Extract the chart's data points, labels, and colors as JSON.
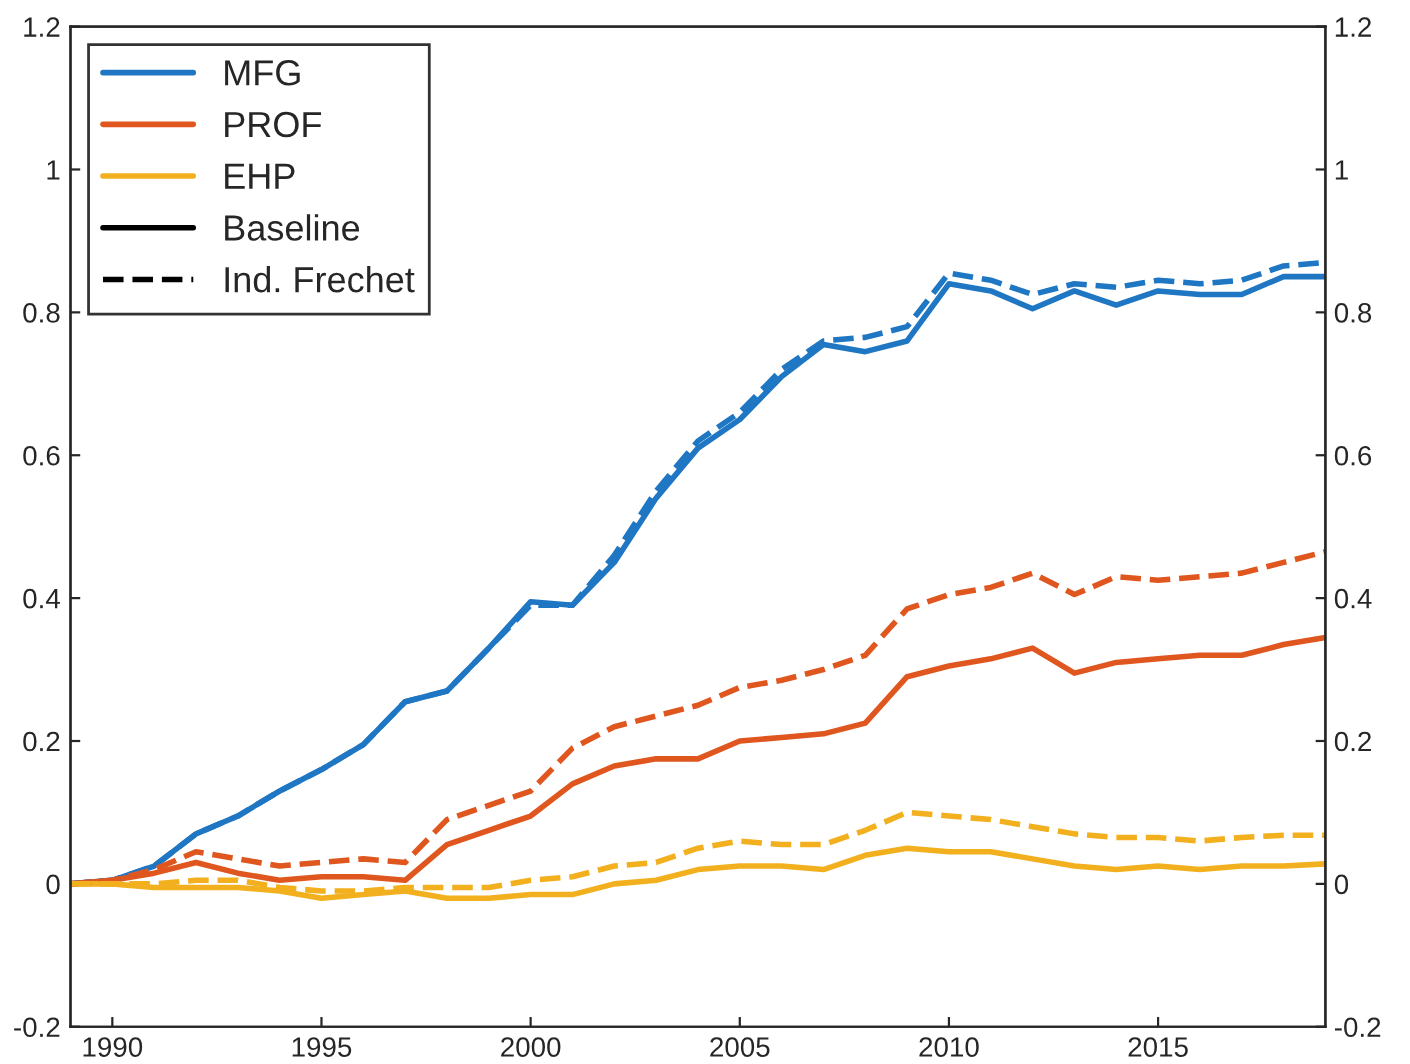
{
  "chart_data": {
    "type": "line",
    "x": [
      1989,
      1990,
      1991,
      1992,
      1993,
      1994,
      1995,
      1996,
      1997,
      1998,
      1999,
      2000,
      2001,
      2002,
      2003,
      2004,
      2005,
      2006,
      2007,
      2008,
      2009,
      2010,
      2011,
      2012,
      2013,
      2014,
      2015,
      2016,
      2017,
      2018,
      2019
    ],
    "series": [
      {
        "name": "MFG",
        "color": "#1f77c4",
        "line_style": "solid",
        "values": [
          0,
          0.005,
          0.025,
          0.07,
          0.095,
          0.13,
          0.16,
          0.195,
          0.255,
          0.27,
          0.33,
          0.395,
          0.39,
          0.45,
          0.54,
          0.61,
          0.65,
          0.71,
          0.755,
          0.745,
          0.76,
          0.84,
          0.83,
          0.805,
          0.83,
          0.81,
          0.83,
          0.825,
          0.825,
          0.85,
          0.85
        ]
      },
      {
        "name": "PROF",
        "color": "#e0561f",
        "line_style": "solid",
        "values": [
          0,
          0.005,
          0.015,
          0.03,
          0.015,
          0.005,
          0.01,
          0.01,
          0.005,
          0.055,
          0.075,
          0.095,
          0.14,
          0.165,
          0.175,
          0.175,
          0.2,
          0.205,
          0.21,
          0.225,
          0.29,
          0.305,
          0.315,
          0.33,
          0.295,
          0.31,
          0.315,
          0.32,
          0.32,
          0.335,
          0.345
        ]
      },
      {
        "name": "EHP",
        "color": "#f2b01e",
        "line_style": "solid",
        "values": [
          0,
          0,
          -0.005,
          -0.005,
          -0.005,
          -0.01,
          -0.02,
          -0.015,
          -0.01,
          -0.02,
          -0.02,
          -0.015,
          -0.015,
          0,
          0.005,
          0.02,
          0.025,
          0.025,
          0.02,
          0.04,
          0.05,
          0.045,
          0.045,
          0.035,
          0.025,
          0.02,
          0.025,
          0.02,
          0.025,
          0.025,
          0.028
        ]
      },
      {
        "color": "#1f77c4",
        "line_style": "dashed",
        "values": [
          0,
          0.005,
          0.025,
          0.07,
          0.095,
          0.13,
          0.16,
          0.195,
          0.255,
          0.27,
          0.33,
          0.39,
          0.39,
          0.46,
          0.55,
          0.62,
          0.66,
          0.72,
          0.76,
          0.765,
          0.78,
          0.855,
          0.845,
          0.825,
          0.84,
          0.835,
          0.845,
          0.84,
          0.845,
          0.865,
          0.87
        ]
      },
      {
        "color": "#e0561f",
        "line_style": "dashed",
        "values": [
          0,
          0.005,
          0.02,
          0.045,
          0.035,
          0.025,
          0.03,
          0.035,
          0.03,
          0.09,
          0.11,
          0.13,
          0.19,
          0.22,
          0.235,
          0.25,
          0.275,
          0.285,
          0.3,
          0.32,
          0.385,
          0.405,
          0.415,
          0.435,
          0.405,
          0.43,
          0.425,
          0.43,
          0.435,
          0.45,
          0.465
        ]
      },
      {
        "color": "#f2b01e",
        "line_style": "dashed",
        "values": [
          0,
          0,
          0,
          0.005,
          0.005,
          -0.005,
          -0.01,
          -0.01,
          -0.005,
          -0.005,
          -0.005,
          0.005,
          0.01,
          0.025,
          0.03,
          0.05,
          0.06,
          0.055,
          0.055,
          0.075,
          0.1,
          0.095,
          0.09,
          0.08,
          0.07,
          0.065,
          0.065,
          0.06,
          0.065,
          0.068,
          0.068
        ]
      }
    ],
    "annotations": [
      "Baseline",
      "Ind. Frechet"
    ],
    "xlim": [
      1989,
      2019
    ],
    "xticks": [
      1990,
      1995,
      2000,
      2005,
      2010,
      2015
    ],
    "ylim": [
      -0.2,
      1.2
    ],
    "yticks": [
      -0.2,
      0,
      0.2,
      0.4,
      0.6,
      0.8,
      1,
      1.2
    ],
    "y2lim": [
      -0.2,
      1.2
    ],
    "y2ticks": [
      -0.2,
      0,
      0.2,
      0.4,
      0.6,
      0.8,
      1,
      1.2
    ],
    "grid": false,
    "legend": "top left"
  }
}
